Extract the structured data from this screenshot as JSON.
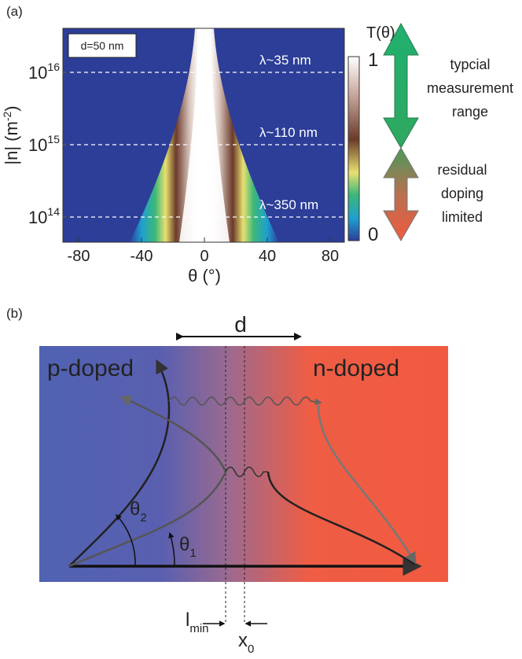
{
  "panel_a": {
    "label": "(a)",
    "inset": "d=50 nm",
    "y_axis_label": {
      "main": "|n| (m",
      "sup": "-2",
      "end": ")"
    },
    "x_axis_label": "θ (°)",
    "x_ticks": [
      "-80",
      "-40",
      "0",
      "40",
      "80"
    ],
    "y_ticks": [
      {
        "base": "10",
        "exp": "16"
      },
      {
        "base": "10",
        "exp": "15"
      },
      {
        "base": "10",
        "exp": "14"
      }
    ],
    "wavelengths": [
      "λ~35 nm",
      "λ~110 nm",
      "λ~350 nm"
    ],
    "colorbar": {
      "title": "T(θ)",
      "top": "1",
      "bottom": "0"
    },
    "upper_arrow_label": [
      "typcial",
      "measurement",
      "range"
    ],
    "lower_arrow_label": [
      "residual",
      "doping",
      "limited"
    ]
  },
  "panel_b": {
    "label": "(b)",
    "width_label": "d",
    "left_region": "p-doped",
    "right_region": "n-doped",
    "theta2": {
      "base": "θ",
      "sub": "2"
    },
    "theta1": {
      "base": "θ",
      "sub": "1"
    },
    "lmin": {
      "base": "l",
      "sub": "min"
    },
    "x0": {
      "base": "x",
      "sub": "0"
    }
  }
}
